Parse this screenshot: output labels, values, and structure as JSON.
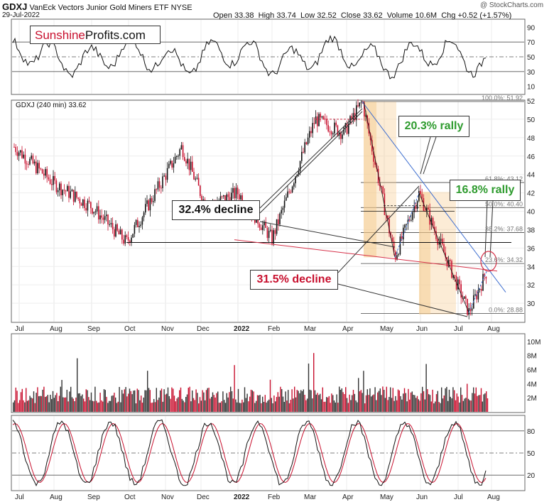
{
  "header": {
    "ticker": "GDXJ",
    "name": "VanEck Vectors Junior Gold Miners ETF",
    "exchange": "NYSE",
    "date": "29-Jul-2022",
    "open_label": "Open",
    "open": "33.38",
    "high_label": "High",
    "high": "33.74",
    "low_label": "Low",
    "low": "32.52",
    "close_label": "Close",
    "close": "33.62",
    "volume_label": "Volume",
    "volume": "10.6M",
    "chg_label": "Chg",
    "chg": "+0.52 (+1.57%)",
    "watermark": "@ StockCharts.com"
  },
  "brand": {
    "part1": "Sunshine",
    "part2": "Profits.com"
  },
  "price_panel_label": "GDXJ (240 min) 33.62",
  "annotations": {
    "decline1": "32.4% decline",
    "decline2": "31.5% decline",
    "rally1": "20.3% rally",
    "rally2": "16.8% rally"
  },
  "colors": {
    "up": "#111111",
    "down": "#c8102e",
    "rally_text": "#2e9b2e",
    "decline2_text": "#c8102e",
    "trendline_blue": "#3f6fd0",
    "trendline_red": "#d63048",
    "shade": "#f5c98a"
  },
  "chart_data": [
    {
      "type": "line",
      "panel": "rsi",
      "yticks": [
        10,
        30,
        50,
        70,
        90
      ],
      "ylim": [
        0,
        100
      ],
      "levels": [
        30,
        50,
        70
      ]
    },
    {
      "type": "candlestick",
      "panel": "price",
      "title": "GDXJ (240 min) 33.62",
      "ylim": [
        28,
        52
      ],
      "yticks": [
        30,
        32,
        34,
        36,
        38,
        40,
        42,
        44,
        46,
        48,
        50,
        52
      ],
      "x_labels": [
        "Jul",
        "Aug",
        "Sep",
        "Oct",
        "Nov",
        "Dec",
        "2022",
        "Feb",
        "Mar",
        "Apr",
        "May",
        "Jun",
        "Jul",
        "Aug"
      ],
      "key_points": [
        {
          "x": "Jul",
          "y": 47.0
        },
        {
          "x": "Aug",
          "y": 43.0
        },
        {
          "x": "Sep",
          "y": 40.5
        },
        {
          "x": "Oct",
          "y": 36.6
        },
        {
          "x": "Nov",
          "y": 47.0
        },
        {
          "x": "Dec",
          "y": 40.5
        },
        {
          "x": "2022",
          "y": 42.0
        },
        {
          "x": "Feb",
          "y": 37.0
        },
        {
          "x": "Mar",
          "y": 50.0
        },
        {
          "x": "Apr",
          "y": 48.5
        },
        {
          "x": "Apr-end",
          "y": 51.9
        },
        {
          "x": "May",
          "y": 35.0
        },
        {
          "x": "Jun",
          "y": 42.0
        },
        {
          "x": "Jul",
          "y": 29.0
        },
        {
          "x": "Aug",
          "y": 33.6
        }
      ],
      "fib_levels": [
        {
          "label": "100.0%: 51.92",
          "value": 51.92
        },
        {
          "label": "61.8%: 43.12",
          "value": 43.12
        },
        {
          "label": "50.0%: 40.40",
          "value": 40.4
        },
        {
          "label": "38.2%: 37.68",
          "value": 37.68
        },
        {
          "label": "23.6%: 34.32",
          "value": 34.32
        },
        {
          "label": "0.0%: 28.88",
          "value": 28.88
        }
      ]
    },
    {
      "type": "bar",
      "panel": "volume",
      "yticks": [
        "2M",
        "4M",
        "6M",
        "8M",
        "10M"
      ],
      "ylim": [
        0,
        11
      ]
    },
    {
      "type": "line",
      "panel": "stochastic",
      "yticks": [
        20,
        50,
        80
      ],
      "ylim": [
        0,
        100
      ],
      "levels": [
        20,
        50,
        80
      ],
      "x_labels": [
        "Jul",
        "Aug",
        "Sep",
        "Oct",
        "Nov",
        "Dec",
        "2022",
        "Feb",
        "Mar",
        "Apr",
        "May",
        "Jun",
        "Jul",
        "Aug"
      ]
    }
  ]
}
